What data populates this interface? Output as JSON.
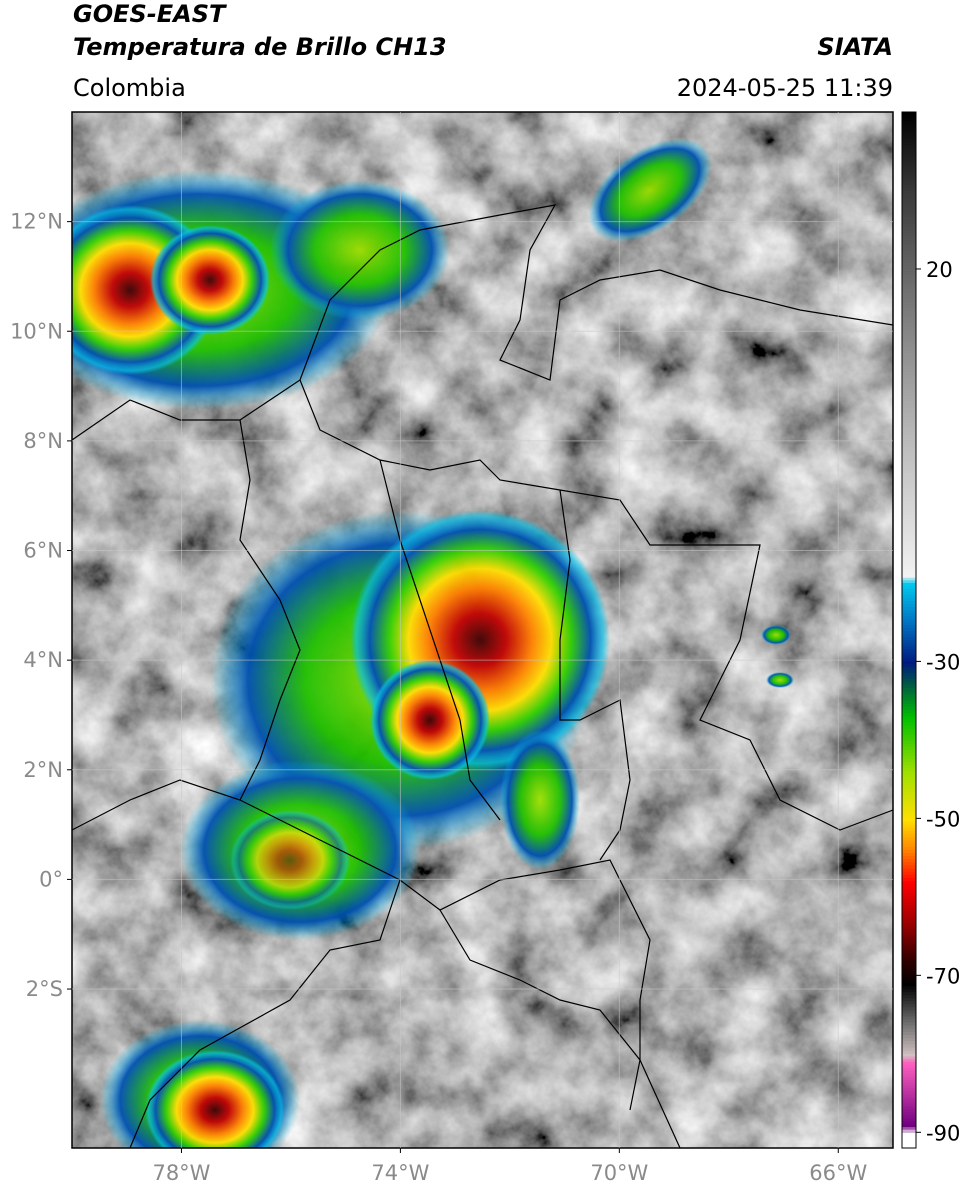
{
  "header": {
    "title": "GOES-EAST",
    "subtitle": "Temperatura de Brillo CH13",
    "region": "Colombia",
    "source": "SIATA",
    "datetime": "2024-05-25 11:39"
  },
  "map": {
    "xlim": [
      -80,
      -65
    ],
    "ylim": [
      -4.9,
      14
    ],
    "grid": true,
    "xticks": [
      {
        "value": -78,
        "label": "78°W"
      },
      {
        "value": -74,
        "label": "74°W"
      },
      {
        "value": -70,
        "label": "70°W"
      },
      {
        "value": -66,
        "label": "66°W"
      }
    ],
    "yticks": [
      {
        "value": 12,
        "label": "12°N"
      },
      {
        "value": 10,
        "label": "10°N"
      },
      {
        "value": 8,
        "label": "8°N"
      },
      {
        "value": 6,
        "label": "6°N"
      },
      {
        "value": 4,
        "label": "4°N"
      },
      {
        "value": 2,
        "label": "2°N"
      },
      {
        "value": 0,
        "label": "0°"
      },
      {
        "value": -2,
        "label": "2°S"
      }
    ]
  },
  "colorbar": {
    "clim": [
      -92,
      40
    ],
    "ticks": [
      20,
      -30,
      -50,
      -70,
      -90
    ],
    "stops": [
      [
        40,
        "#000000"
      ],
      [
        30,
        "#3a3a3a"
      ],
      [
        15,
        "#7a7a7a"
      ],
      [
        0,
        "#b5b5b5"
      ],
      [
        -19,
        "#f2f2f2"
      ],
      [
        -20,
        "#00c8ee"
      ],
      [
        -25,
        "#0070c0"
      ],
      [
        -30,
        "#001a80"
      ],
      [
        -33,
        "#006040"
      ],
      [
        -37,
        "#00c000"
      ],
      [
        -44,
        "#a0e000"
      ],
      [
        -50,
        "#ffe000"
      ],
      [
        -54,
        "#ff8000"
      ],
      [
        -58,
        "#ff0000"
      ],
      [
        -63,
        "#a00000"
      ],
      [
        -68,
        "#300000"
      ],
      [
        -71,
        "#000000"
      ],
      [
        -76,
        "#707070"
      ],
      [
        -80,
        "#d0c0c0"
      ],
      [
        -81,
        "#ff60c0"
      ],
      [
        -89,
        "#700080"
      ],
      [
        -90,
        "#ffffff"
      ]
    ]
  }
}
